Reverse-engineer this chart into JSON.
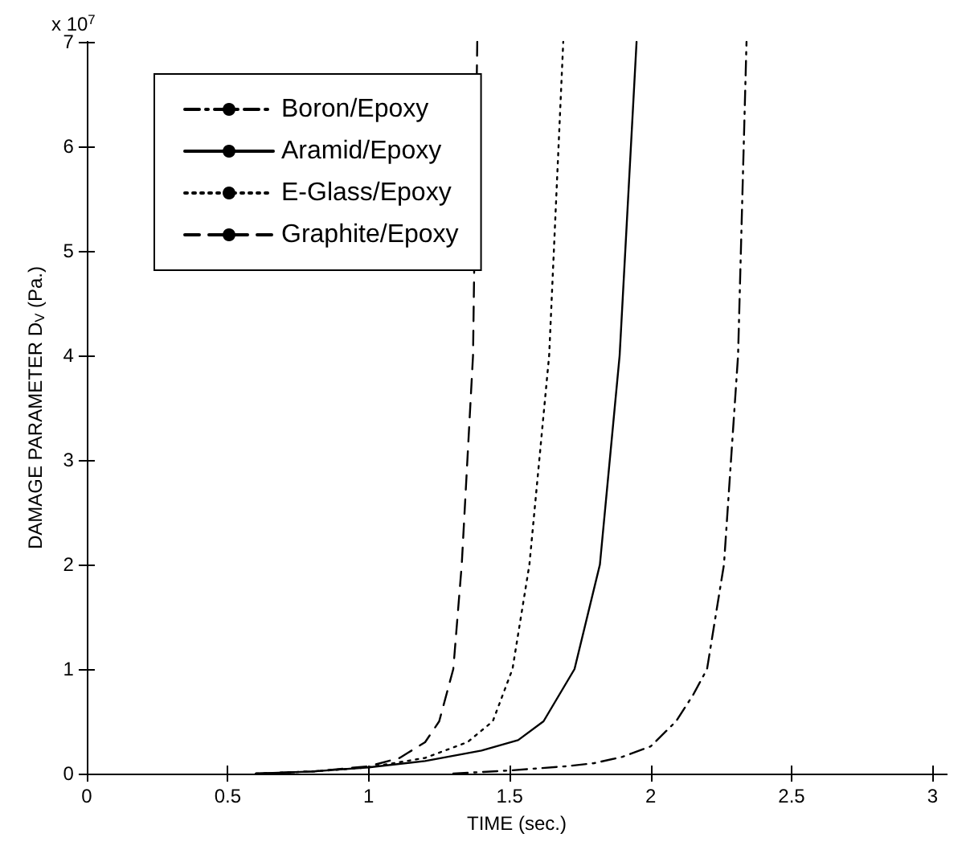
{
  "chart_data": {
    "type": "line",
    "xlabel": "TIME (sec.)",
    "ylabel": "DAMAGE PARAMETER D$_{V}$ (Pa.)",
    "annotations": [
      "x 10$^{7}$"
    ],
    "xlim": [
      0,
      3.05
    ],
    "xticks": [
      0,
      0.5,
      1,
      1.5,
      2,
      2.5,
      3
    ],
    "ylim": [
      0,
      7
    ],
    "yticks": [
      0,
      1,
      2,
      3,
      4,
      5,
      6,
      7
    ],
    "grid": false,
    "legend": "top left",
    "marker": "none",
    "series": [
      {
        "name": "Boron/Epoxy",
        "color": "#000000",
        "line_style": "dashdot",
        "x": [
          1.3,
          1.5,
          1.7,
          1.8,
          1.9,
          2.0,
          2.09,
          2.15,
          2.2,
          2.26,
          2.31,
          2.34
        ],
        "values": [
          0,
          0.03,
          0.07,
          0.1,
          0.16,
          0.26,
          0.5,
          0.75,
          1,
          2,
          4,
          7
        ]
      },
      {
        "name": "Aramid/Epoxy",
        "color": "#000000",
        "line_style": "solid",
        "x": [
          0.6,
          0.8,
          1.0,
          1.2,
          1.4,
          1.53,
          1.62,
          1.73,
          1.82,
          1.89,
          1.95
        ],
        "values": [
          0,
          0.02,
          0.06,
          0.12,
          0.22,
          0.32,
          0.5,
          1,
          2,
          4,
          7
        ]
      },
      {
        "name": "E-Glass/Epoxy",
        "color": "#000000",
        "line_style": "dotted",
        "x": [
          0.6,
          0.8,
          1.0,
          1.2,
          1.35,
          1.44,
          1.51,
          1.57,
          1.64,
          1.69
        ],
        "values": [
          0,
          0.02,
          0.06,
          0.15,
          0.3,
          0.5,
          1,
          2,
          4,
          7
        ]
      },
      {
        "name": "Graphite/Epoxy",
        "color": "#000000",
        "line_style": "dashed",
        "x": [
          0.6,
          0.8,
          1.0,
          1.11,
          1.2,
          1.25,
          1.3,
          1.33,
          1.37,
          1.385
        ],
        "values": [
          0,
          0.02,
          0.07,
          0.15,
          0.3,
          0.5,
          1,
          2,
          4,
          7
        ]
      }
    ]
  }
}
